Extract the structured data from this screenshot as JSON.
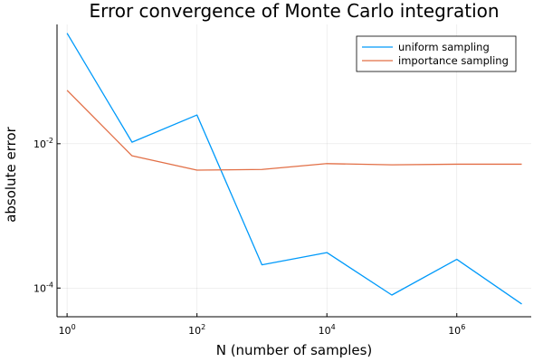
{
  "chart_data": {
    "type": "line",
    "title": "Error convergence of Monte Carlo integration",
    "xlabel": "N (number of samples)",
    "ylabel": "absolute error",
    "x_scale": "log10",
    "y_scale": "log10",
    "x": [
      1,
      10,
      100,
      1000,
      10000,
      100000,
      1000000,
      10000000
    ],
    "xlim": [
      0.7,
      14000000
    ],
    "ylim": [
      4e-05,
      0.45
    ],
    "x_ticks": [
      {
        "value": 1,
        "base": "10",
        "exp": "0"
      },
      {
        "value": 100,
        "base": "10",
        "exp": "2"
      },
      {
        "value": 10000,
        "base": "10",
        "exp": "4"
      },
      {
        "value": 1000000,
        "base": "10",
        "exp": "6"
      }
    ],
    "y_ticks": [
      {
        "value": 0.01,
        "base": "10",
        "exp": "-2"
      },
      {
        "value": 0.0001,
        "base": "10",
        "exp": "-4"
      }
    ],
    "grid": true,
    "legend_position": "top-right",
    "series": [
      {
        "name": "uniform sampling",
        "color": "#009AFA",
        "values": [
          0.34,
          0.0105,
          0.025,
          0.00021,
          0.00031,
          8e-05,
          0.00025,
          6e-05
        ]
      },
      {
        "name": "importance sampling",
        "color": "#E26F46",
        "values": [
          0.055,
          0.0068,
          0.0043,
          0.0044,
          0.0053,
          0.0051,
          0.0052,
          0.0052
        ]
      }
    ]
  }
}
